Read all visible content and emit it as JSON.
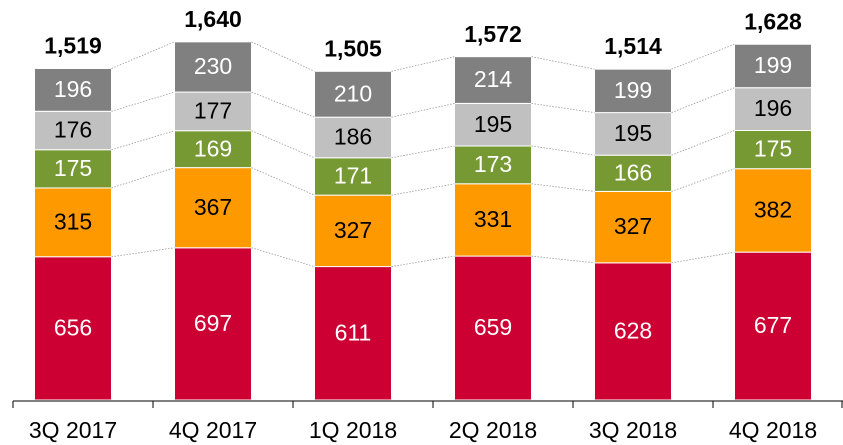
{
  "chart_data": {
    "type": "stacked_bar",
    "categories": [
      "3Q 2017",
      "4Q 2017",
      "1Q 2018",
      "2Q 2018",
      "3Q 2018",
      "4Q 2018"
    ],
    "series": [
      {
        "color": "#cc0033",
        "label_color": "#ffffff",
        "values": [
          656,
          697,
          611,
          659,
          628,
          677
        ]
      },
      {
        "color": "#ff9900",
        "label_color": "#000000",
        "values": [
          315,
          367,
          327,
          331,
          327,
          382
        ]
      },
      {
        "color": "#779933",
        "label_color": "#ffffff",
        "values": [
          175,
          169,
          171,
          173,
          166,
          175
        ]
      },
      {
        "color": "#c0c0c0",
        "label_color": "#000000",
        "values": [
          176,
          177,
          186,
          195,
          195,
          196
        ]
      },
      {
        "color": "#808080",
        "label_color": "#ffffff",
        "values": [
          196,
          230,
          210,
          214,
          199,
          199
        ]
      }
    ],
    "totals": {
      "values": [
        1519,
        1640,
        1505,
        1572,
        1514,
        1628
      ],
      "value_labels": [
        "1,519",
        "1,640",
        "1,505",
        "1,572",
        "1,514",
        "1,628"
      ]
    },
    "ylim": [
      0,
      1740
    ]
  }
}
